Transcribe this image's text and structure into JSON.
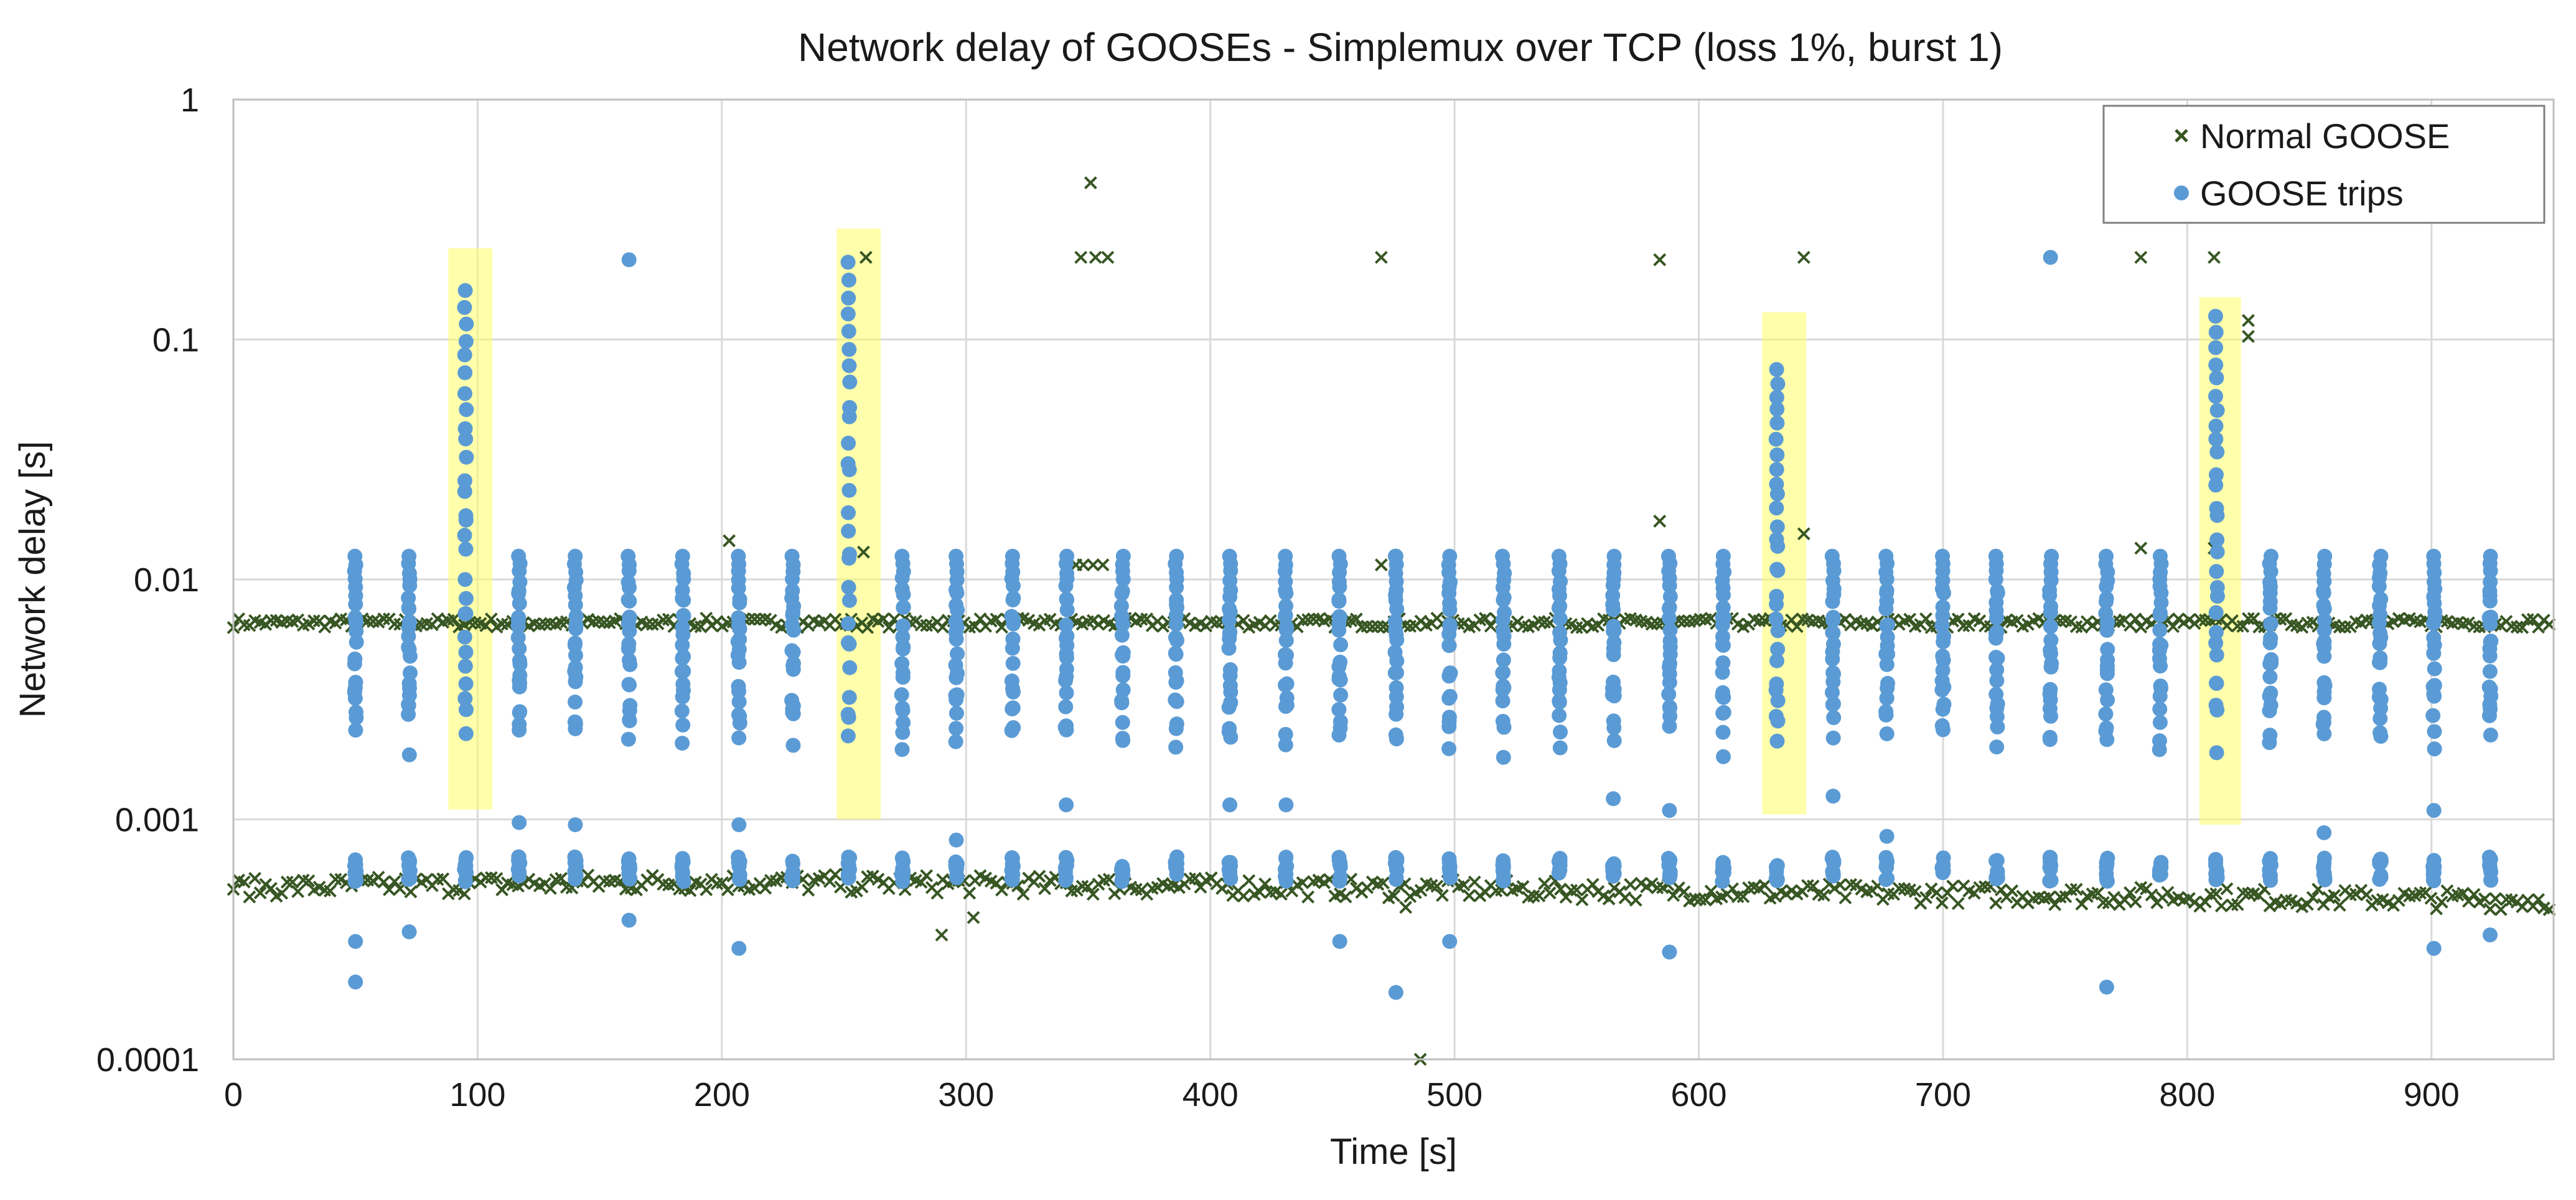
{
  "chart_data": {
    "type": "scatter",
    "title": "Network delay of GOOSEs - Simplemux over TCP (loss 1%, burst 1)",
    "xlabel": "Time [s]",
    "ylabel": "Network delay [s]",
    "xlim": [
      0,
      950
    ],
    "ylim": [
      0.0001,
      1
    ],
    "yscale": "log",
    "grid": true,
    "legend_position": "top-right",
    "x_ticks": [
      0,
      100,
      200,
      300,
      400,
      500,
      600,
      700,
      800,
      900
    ],
    "x_tick_labels": [
      "0",
      "100",
      "200",
      "300",
      "400",
      "500",
      "600",
      "700",
      "800",
      "900"
    ],
    "y_ticks": [
      0.0001,
      0.001,
      0.01,
      0.1,
      1
    ],
    "y_tick_labels": [
      "0.0001",
      "0.001",
      "0.01",
      "0.1",
      "1"
    ],
    "highlight_bands": [
      {
        "x_from": 88,
        "x_to": 106,
        "y_from": 0.0011,
        "y_to": 0.24
      },
      {
        "x_from": 247,
        "x_to": 265,
        "y_from": 0.001,
        "y_to": 0.29
      },
      {
        "x_from": 626,
        "x_to": 644,
        "y_from": 0.00105,
        "y_to": 0.13
      },
      {
        "x_from": 805,
        "x_to": 822,
        "y_from": 0.00095,
        "y_to": 0.15
      }
    ],
    "series": [
      {
        "name": "Normal GOOSE",
        "marker": "x",
        "color": "#375623",
        "baseline_high": {
          "x_range": [
            0,
            950
          ],
          "y": 0.0066
        },
        "baseline_low": {
          "x_range": [
            0,
            950
          ],
          "y_start": 0.00052,
          "y_mid": 0.00055,
          "y_end": 0.00046
        },
        "outliers": [
          {
            "x": 203,
            "y": 0.0145
          },
          {
            "x": 258,
            "y": 0.013
          },
          {
            "x": 259,
            "y": 0.22
          },
          {
            "x": 290,
            "y": 0.00033
          },
          {
            "x": 303,
            "y": 0.00039
          },
          {
            "x": 345,
            "y": 0.0115
          },
          {
            "x": 348,
            "y": 0.0115
          },
          {
            "x": 352,
            "y": 0.0115
          },
          {
            "x": 356,
            "y": 0.0115
          },
          {
            "x": 347,
            "y": 0.22
          },
          {
            "x": 351,
            "y": 0.45
          },
          {
            "x": 353,
            "y": 0.22
          },
          {
            "x": 358,
            "y": 0.22
          },
          {
            "x": 470,
            "y": 0.22
          },
          {
            "x": 470,
            "y": 0.0115
          },
          {
            "x": 480,
            "y": 0.00043
          },
          {
            "x": 486,
            "y": 0.0001
          },
          {
            "x": 584,
            "y": 0.215
          },
          {
            "x": 584,
            "y": 0.0175
          },
          {
            "x": 643,
            "y": 0.22
          },
          {
            "x": 643,
            "y": 0.0155
          },
          {
            "x": 781,
            "y": 0.22
          },
          {
            "x": 781,
            "y": 0.0135
          },
          {
            "x": 811,
            "y": 0.22
          },
          {
            "x": 811,
            "y": 0.0135
          },
          {
            "x": 825,
            "y": 0.12
          },
          {
            "x": 825,
            "y": 0.103
          }
        ]
      },
      {
        "name": "GOOSE trips",
        "marker": "circle",
        "color": "#5b9bd5",
        "trip_columns_x": [
          50,
          72,
          95,
          117,
          140,
          162,
          184,
          207,
          229,
          252,
          274,
          296,
          319,
          341,
          364,
          386,
          408,
          431,
          453,
          476,
          498,
          520,
          543,
          565,
          588,
          610,
          632,
          655,
          677,
          700,
          722,
          744,
          767,
          789,
          812,
          834,
          856,
          879,
          901,
          924
        ],
        "tall_columns_x": [
          95,
          252,
          632,
          812
        ],
        "high_cluster": {
          "y_min": 0.0018,
          "y_max": 0.0125
        },
        "low_cluster": {
          "y_min": 0.00055,
          "y_max": 0.0007
        },
        "outliers": [
          {
            "x": 50,
            "y": 0.00021
          },
          {
            "x": 50,
            "y": 0.00031
          },
          {
            "x": 72,
            "y": 0.00034
          },
          {
            "x": 117,
            "y": 0.00097
          },
          {
            "x": 140,
            "y": 0.00095
          },
          {
            "x": 162,
            "y": 0.215
          },
          {
            "x": 162,
            "y": 0.00038
          },
          {
            "x": 207,
            "y": 0.00095
          },
          {
            "x": 207,
            "y": 0.00029
          },
          {
            "x": 296,
            "y": 0.00082
          },
          {
            "x": 341,
            "y": 0.00115
          },
          {
            "x": 408,
            "y": 0.00115
          },
          {
            "x": 431,
            "y": 0.00115
          },
          {
            "x": 453,
            "y": 0.00031
          },
          {
            "x": 476,
            "y": 0.00019
          },
          {
            "x": 476,
            "y": 0.0125
          },
          {
            "x": 498,
            "y": 0.00031
          },
          {
            "x": 565,
            "y": 0.00122
          },
          {
            "x": 588,
            "y": 0.00109
          },
          {
            "x": 588,
            "y": 0.00028
          },
          {
            "x": 655,
            "y": 0.00125
          },
          {
            "x": 677,
            "y": 0.00085
          },
          {
            "x": 744,
            "y": 0.22
          },
          {
            "x": 767,
            "y": 0.0002
          },
          {
            "x": 856,
            "y": 0.00088
          },
          {
            "x": 901,
            "y": 0.00109
          },
          {
            "x": 901,
            "y": 0.00029
          },
          {
            "x": 924,
            "y": 0.00033
          }
        ]
      }
    ]
  }
}
